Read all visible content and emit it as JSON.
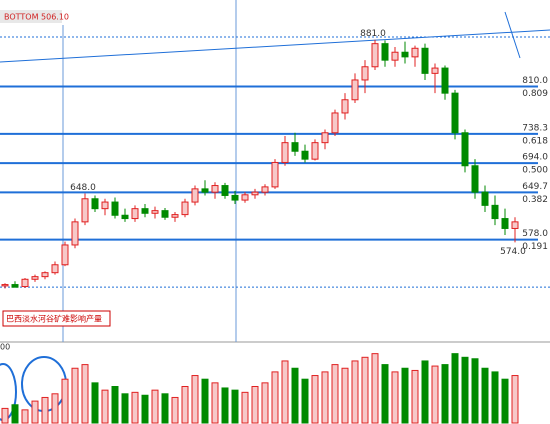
{
  "chart_data": {
    "type": "candlestick",
    "title": "BOTTOM 506.10",
    "note": "巴西淡水河谷矿难影响产量",
    "volume_label": "00",
    "up_color": "#e02020",
    "down_color": "#008a00",
    "level_color": "#1f6fd8",
    "ylim": [
      426,
      926
    ],
    "volume_ylim": [
      0,
      100
    ],
    "levels": [
      {
        "value": 810,
        "label": "810.0",
        "ratio": "0.809"
      },
      {
        "value": 738.3,
        "label": "738.3",
        "ratio": "0.618"
      },
      {
        "value": 694,
        "label": "694.0",
        "ratio": "0.500"
      },
      {
        "value": 649.7,
        "label": "649.7",
        "ratio": "0.382"
      },
      {
        "value": 578,
        "label": "578.0",
        "ratio": "0.191"
      }
    ],
    "dotted_levels": [
      885,
      506.1
    ],
    "annotations": [
      {
        "text": "648.0",
        "value": 648
      },
      {
        "text": "881.0",
        "value": 881
      },
      {
        "text": "574.0",
        "value": 574
      }
    ],
    "open": [
      508,
      510,
      507,
      518,
      522,
      528,
      540,
      570,
      605,
      640,
      625,
      635,
      615,
      610,
      625,
      618,
      622,
      612,
      616,
      635,
      655,
      650,
      660,
      645,
      638,
      646,
      650,
      658,
      695,
      725,
      712,
      700,
      725,
      740,
      770,
      790,
      820,
      840,
      875,
      850,
      862,
      855,
      868,
      830,
      838,
      800,
      740,
      690,
      650,
      630,
      610,
      595
    ],
    "high": [
      512,
      515,
      520,
      525,
      530,
      545,
      575,
      610,
      648,
      645,
      640,
      642,
      625,
      630,
      632,
      628,
      626,
      620,
      640,
      660,
      668,
      665,
      664,
      652,
      650,
      655,
      662,
      700,
      735,
      740,
      722,
      730,
      745,
      775,
      800,
      830,
      850,
      881,
      880,
      870,
      878,
      872,
      875,
      845,
      842,
      805,
      745,
      700,
      660,
      645,
      625,
      612
    ],
    "low": [
      504,
      506,
      505,
      514,
      518,
      525,
      538,
      565,
      600,
      620,
      615,
      610,
      605,
      605,
      612,
      610,
      608,
      605,
      612,
      630,
      645,
      640,
      640,
      632,
      634,
      640,
      645,
      655,
      690,
      705,
      695,
      698,
      715,
      735,
      760,
      785,
      800,
      835,
      840,
      840,
      845,
      840,
      820,
      800,
      790,
      730,
      680,
      640,
      620,
      600,
      585,
      574
    ],
    "close": [
      510,
      506,
      518,
      522,
      528,
      540,
      570,
      605,
      640,
      625,
      635,
      615,
      610,
      625,
      618,
      622,
      612,
      616,
      635,
      655,
      650,
      660,
      645,
      638,
      646,
      650,
      658,
      695,
      725,
      712,
      700,
      725,
      740,
      770,
      790,
      820,
      840,
      875,
      850,
      862,
      855,
      868,
      830,
      838,
      800,
      740,
      690,
      650,
      630,
      610,
      595,
      605
    ],
    "volume": [
      20,
      25,
      18,
      30,
      35,
      40,
      60,
      75,
      80,
      55,
      45,
      50,
      40,
      42,
      38,
      45,
      40,
      35,
      50,
      65,
      60,
      55,
      48,
      45,
      42,
      50,
      55,
      70,
      85,
      75,
      60,
      65,
      70,
      80,
      75,
      85,
      90,
      95,
      80,
      70,
      75,
      72,
      85,
      78,
      80,
      95,
      90,
      88,
      75,
      70,
      60,
      65
    ]
  }
}
